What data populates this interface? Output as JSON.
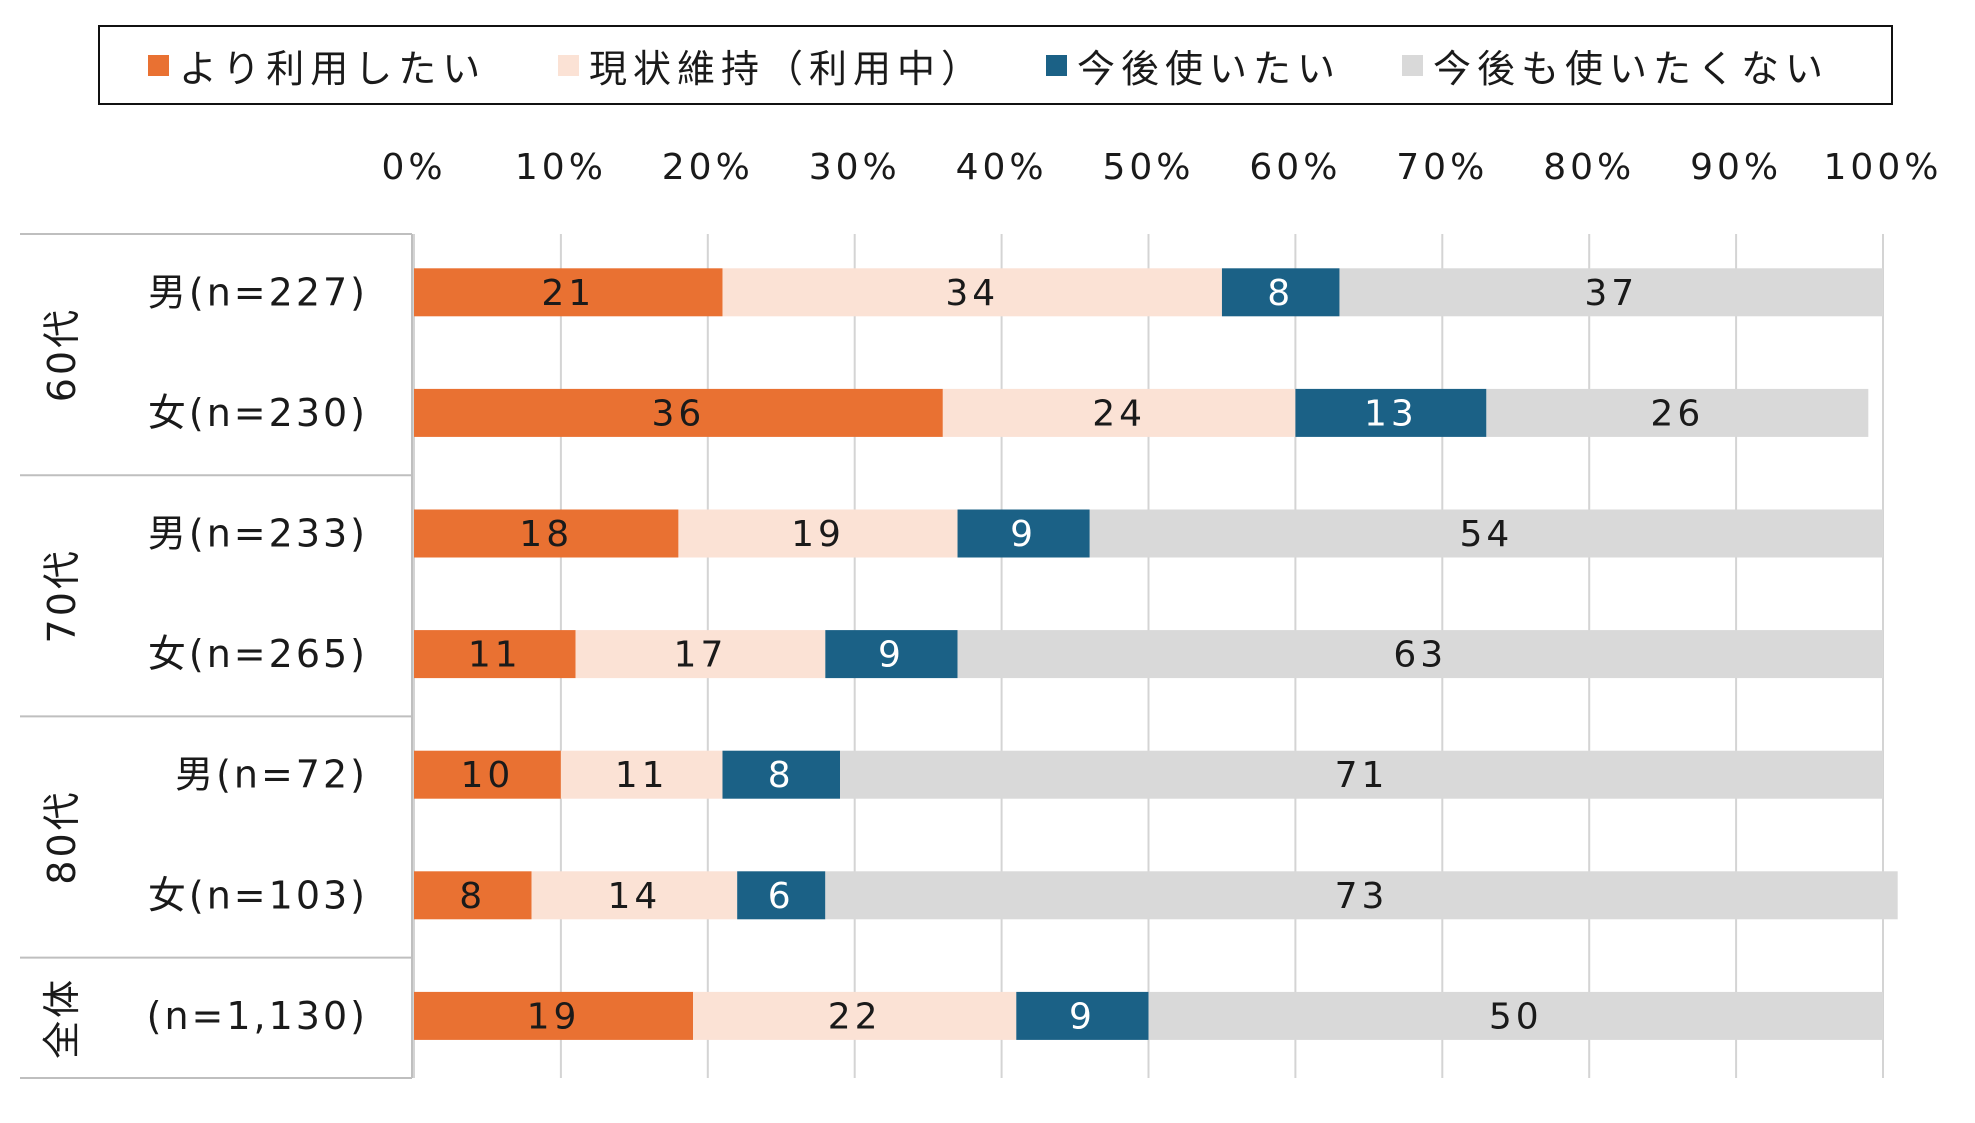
{
  "chart_data": {
    "type": "bar",
    "orientation": "horizontal-stacked-100",
    "xlim": [
      0,
      100
    ],
    "x_ticks": [
      "0%",
      "10%",
      "20%",
      "30%",
      "40%",
      "50%",
      "60%",
      "70%",
      "80%",
      "90%",
      "100%"
    ],
    "grid": true,
    "legend_position": "top",
    "series": [
      {
        "name": "より利用したい",
        "color": "#E97132",
        "label_color": "#1a1a1a",
        "values": [
          21,
          36,
          18,
          11,
          10,
          8,
          19
        ]
      },
      {
        "name": "現状維持（利用中）",
        "color": "#FBE2D5",
        "label_color": "#1a1a1a",
        "values": [
          34,
          24,
          19,
          17,
          11,
          14,
          22
        ]
      },
      {
        "name": "今後使いたい",
        "color": "#1B6186",
        "label_color": "#ffffff",
        "values": [
          8,
          13,
          9,
          9,
          8,
          6,
          9
        ]
      },
      {
        "name": "今後も使いたくない",
        "color": "#D9D9D9",
        "label_color": "#1a1a1a",
        "values": [
          37,
          26,
          54,
          63,
          71,
          73,
          50
        ]
      }
    ],
    "rows": [
      {
        "group": "60代",
        "label": "男(n=227)"
      },
      {
        "group": "60代",
        "label": "女(n=230)"
      },
      {
        "group": "70代",
        "label": "男(n=233)"
      },
      {
        "group": "70代",
        "label": "女(n=265)"
      },
      {
        "group": "80代",
        "label": "男(n=72)"
      },
      {
        "group": "80代",
        "label": "女(n=103)"
      },
      {
        "group": "全体",
        "label": "(n=1,130)"
      }
    ],
    "groups": [
      "60代",
      "70代",
      "80代",
      "全体"
    ]
  }
}
